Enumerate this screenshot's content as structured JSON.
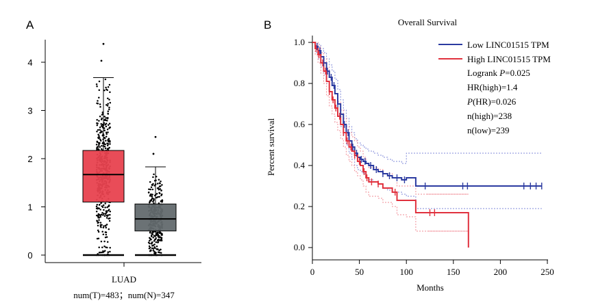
{
  "chart_data": [
    {
      "type": "box",
      "panel_label": "A",
      "categories": [
        "LUAD"
      ],
      "xlabel": "LUAD",
      "xlabel_sub": "num(T)=483；num(N)=347",
      "ylim": [
        0,
        4.5
      ],
      "yticks": [
        0,
        1,
        2,
        3,
        4
      ],
      "groups": [
        {
          "name": "T",
          "n": 483,
          "color": "#e8424f",
          "q1": 1.1,
          "median": 1.67,
          "q3": 2.17,
          "whisker_low": 0.0,
          "whisker_high": 3.68,
          "point_max": 4.38
        },
        {
          "name": "N",
          "n": 347,
          "color": "#636a6e",
          "q1": 0.5,
          "median": 0.75,
          "q3": 1.06,
          "whisker_low": 0.0,
          "whisker_high": 1.83,
          "point_max": 2.45
        }
      ]
    },
    {
      "type": "line",
      "panel_label": "B",
      "title": "Overall Survival",
      "xlabel": "Months",
      "ylabel": "Percent survival",
      "xlim": [
        0,
        250
      ],
      "ylim": [
        0,
        1.0
      ],
      "xticks": [
        0,
        50,
        100,
        150,
        200,
        250
      ],
      "yticks": [
        "0.0",
        "0.2",
        "0.4",
        "0.6",
        "0.8",
        "1.0"
      ],
      "legend_position": "top-right",
      "series": [
        {
          "name": "Low LINC01515 TPM",
          "color": "#2b3aa0",
          "x": [
            0,
            3,
            6,
            9,
            12,
            15,
            18,
            21,
            24,
            27,
            30,
            33,
            36,
            39,
            42,
            45,
            48,
            51,
            54,
            57,
            60,
            65,
            70,
            75,
            80,
            85,
            90,
            95,
            100,
            110,
            120,
            244
          ],
          "y": [
            1.0,
            0.98,
            0.96,
            0.93,
            0.9,
            0.86,
            0.83,
            0.79,
            0.75,
            0.7,
            0.65,
            0.6,
            0.56,
            0.52,
            0.49,
            0.46,
            0.44,
            0.43,
            0.42,
            0.41,
            0.4,
            0.38,
            0.37,
            0.36,
            0.35,
            0.34,
            0.34,
            0.33,
            0.34,
            0.3,
            0.3,
            0.3
          ],
          "censor_x": [
            5,
            8,
            12,
            16,
            20,
            23,
            27,
            30,
            34,
            38,
            43,
            47,
            52,
            56,
            62,
            68,
            75,
            82,
            90,
            98,
            120,
            160,
            165,
            225,
            232,
            238,
            244
          ],
          "ci_lower_y": [
            1.0,
            0.95,
            0.92,
            0.88,
            0.84,
            0.8,
            0.76,
            0.72,
            0.68,
            0.64,
            0.59,
            0.55,
            0.5,
            0.46,
            0.43,
            0.4,
            0.38,
            0.37,
            0.36,
            0.34,
            0.33,
            0.32,
            0.31,
            0.29,
            0.28,
            0.27,
            0.27,
            0.26,
            0.25,
            0.19,
            0.19,
            0.19
          ],
          "ci_upper_y": [
            1.0,
            1.0,
            0.99,
            0.97,
            0.95,
            0.92,
            0.89,
            0.86,
            0.82,
            0.77,
            0.72,
            0.67,
            0.63,
            0.59,
            0.56,
            0.53,
            0.51,
            0.5,
            0.49,
            0.48,
            0.47,
            0.46,
            0.45,
            0.44,
            0.43,
            0.42,
            0.42,
            0.41,
            0.46,
            0.46,
            0.46,
            0.46
          ]
        },
        {
          "name": "High LINC01515 TPM",
          "color": "#e0303d",
          "x": [
            0,
            3,
            6,
            9,
            12,
            15,
            18,
            21,
            24,
            27,
            30,
            33,
            36,
            39,
            42,
            45,
            48,
            51,
            54,
            57,
            60,
            65,
            70,
            75,
            80,
            85,
            90,
            95,
            100,
            110,
            120,
            130,
            140,
            150,
            160,
            166
          ],
          "y": [
            1.0,
            0.97,
            0.94,
            0.9,
            0.86,
            0.81,
            0.76,
            0.72,
            0.68,
            0.64,
            0.6,
            0.56,
            0.52,
            0.49,
            0.47,
            0.45,
            0.42,
            0.4,
            0.37,
            0.34,
            0.32,
            0.32,
            0.31,
            0.29,
            0.29,
            0.27,
            0.23,
            0.23,
            0.23,
            0.17,
            0.17,
            0.17,
            0.17,
            0.17,
            0.17,
            0.0
          ],
          "censor_x": [
            4,
            7,
            11,
            14,
            18,
            22,
            25,
            29,
            33,
            37,
            41,
            45,
            50,
            55,
            58,
            63,
            70,
            88,
            125,
            130
          ],
          "ci_lower_y": [
            1.0,
            0.94,
            0.9,
            0.85,
            0.8,
            0.74,
            0.69,
            0.65,
            0.61,
            0.57,
            0.53,
            0.49,
            0.45,
            0.42,
            0.4,
            0.37,
            0.35,
            0.33,
            0.3,
            0.27,
            0.25,
            0.25,
            0.24,
            0.22,
            0.22,
            0.2,
            0.16,
            0.16,
            0.15,
            0.08,
            0.08,
            0.08,
            0.08,
            0.08,
            0.08,
            0.08
          ],
          "ci_upper_y": [
            1.0,
            1.0,
            0.98,
            0.95,
            0.92,
            0.88,
            0.83,
            0.79,
            0.75,
            0.71,
            0.67,
            0.63,
            0.59,
            0.56,
            0.54,
            0.52,
            0.49,
            0.47,
            0.44,
            0.41,
            0.39,
            0.39,
            0.38,
            0.36,
            0.36,
            0.34,
            0.3,
            0.3,
            0.3,
            0.26,
            0.26,
            0.26,
            0.26,
            0.26,
            0.26,
            0.26
          ]
        }
      ],
      "annotations": [
        {
          "label": "Logrank ",
          "italic_label": "P",
          "value": "=0.025"
        },
        {
          "label": "HR(high)=1.4"
        },
        {
          "italic_label": "P",
          "label": "(HR)",
          "value": "=0.026"
        },
        {
          "label": "n(high)=238"
        },
        {
          "label": "n(low)=239"
        }
      ]
    }
  ]
}
